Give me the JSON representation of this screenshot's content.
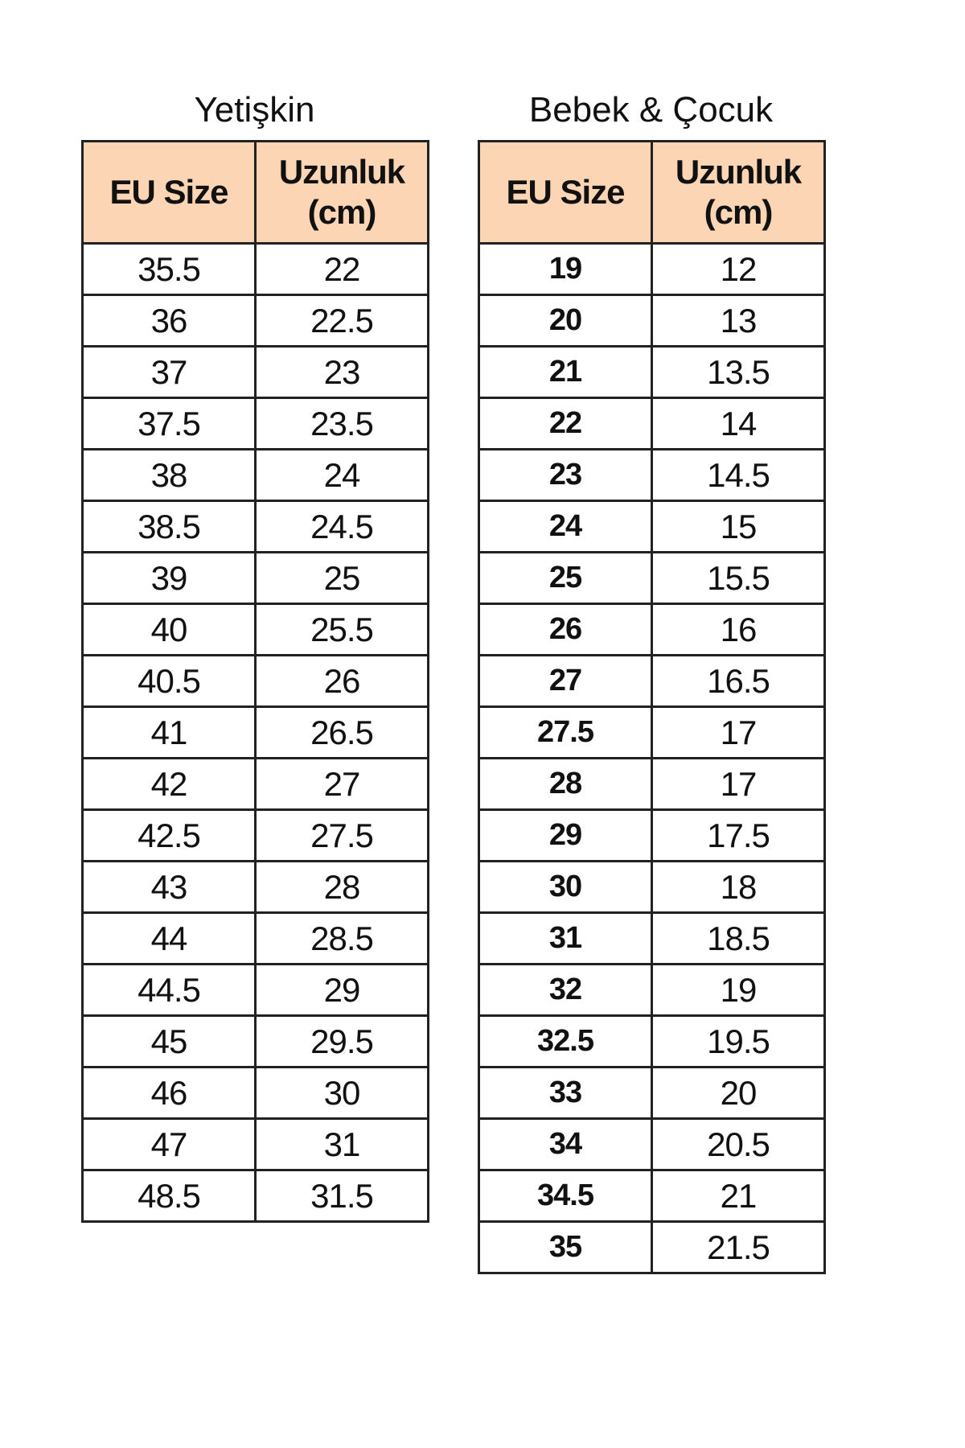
{
  "adult": {
    "title": "Yetişkin",
    "headers": [
      "EU Size",
      "Uzunluk (cm)"
    ],
    "rows": [
      [
        "35.5",
        "22"
      ],
      [
        "36",
        "22.5"
      ],
      [
        "37",
        "23"
      ],
      [
        "37.5",
        "23.5"
      ],
      [
        "38",
        "24"
      ],
      [
        "38.5",
        "24.5"
      ],
      [
        "39",
        "25"
      ],
      [
        "40",
        "25.5"
      ],
      [
        "40.5",
        "26"
      ],
      [
        "41",
        "26.5"
      ],
      [
        "42",
        "27"
      ],
      [
        "42.5",
        "27.5"
      ],
      [
        "43",
        "28"
      ],
      [
        "44",
        "28.5"
      ],
      [
        "44.5",
        "29"
      ],
      [
        "45",
        "29.5"
      ],
      [
        "46",
        "30"
      ],
      [
        "47",
        "31"
      ],
      [
        "48.5",
        "31.5"
      ]
    ]
  },
  "kids": {
    "title": "Bebek & Çocuk",
    "headers": [
      "EU Size",
      "Uzunluk (cm)"
    ],
    "rows": [
      [
        "19",
        "12"
      ],
      [
        "20",
        "13"
      ],
      [
        "21",
        "13.5"
      ],
      [
        "22",
        "14"
      ],
      [
        "23",
        "14.5"
      ],
      [
        "24",
        "15"
      ],
      [
        "25",
        "15.5"
      ],
      [
        "26",
        "16"
      ],
      [
        "27",
        "16.5"
      ],
      [
        "27.5",
        "17"
      ],
      [
        "28",
        "17"
      ],
      [
        "29",
        "17.5"
      ],
      [
        "30",
        "18"
      ],
      [
        "31",
        "18.5"
      ],
      [
        "32",
        "19"
      ],
      [
        "32.5",
        "19.5"
      ],
      [
        "33",
        "20"
      ],
      [
        "34",
        "20.5"
      ],
      [
        "34.5",
        "21"
      ],
      [
        "35",
        "21.5"
      ]
    ]
  },
  "colors": {
    "header_bg": "#fcd5b4",
    "border": "#222222"
  }
}
